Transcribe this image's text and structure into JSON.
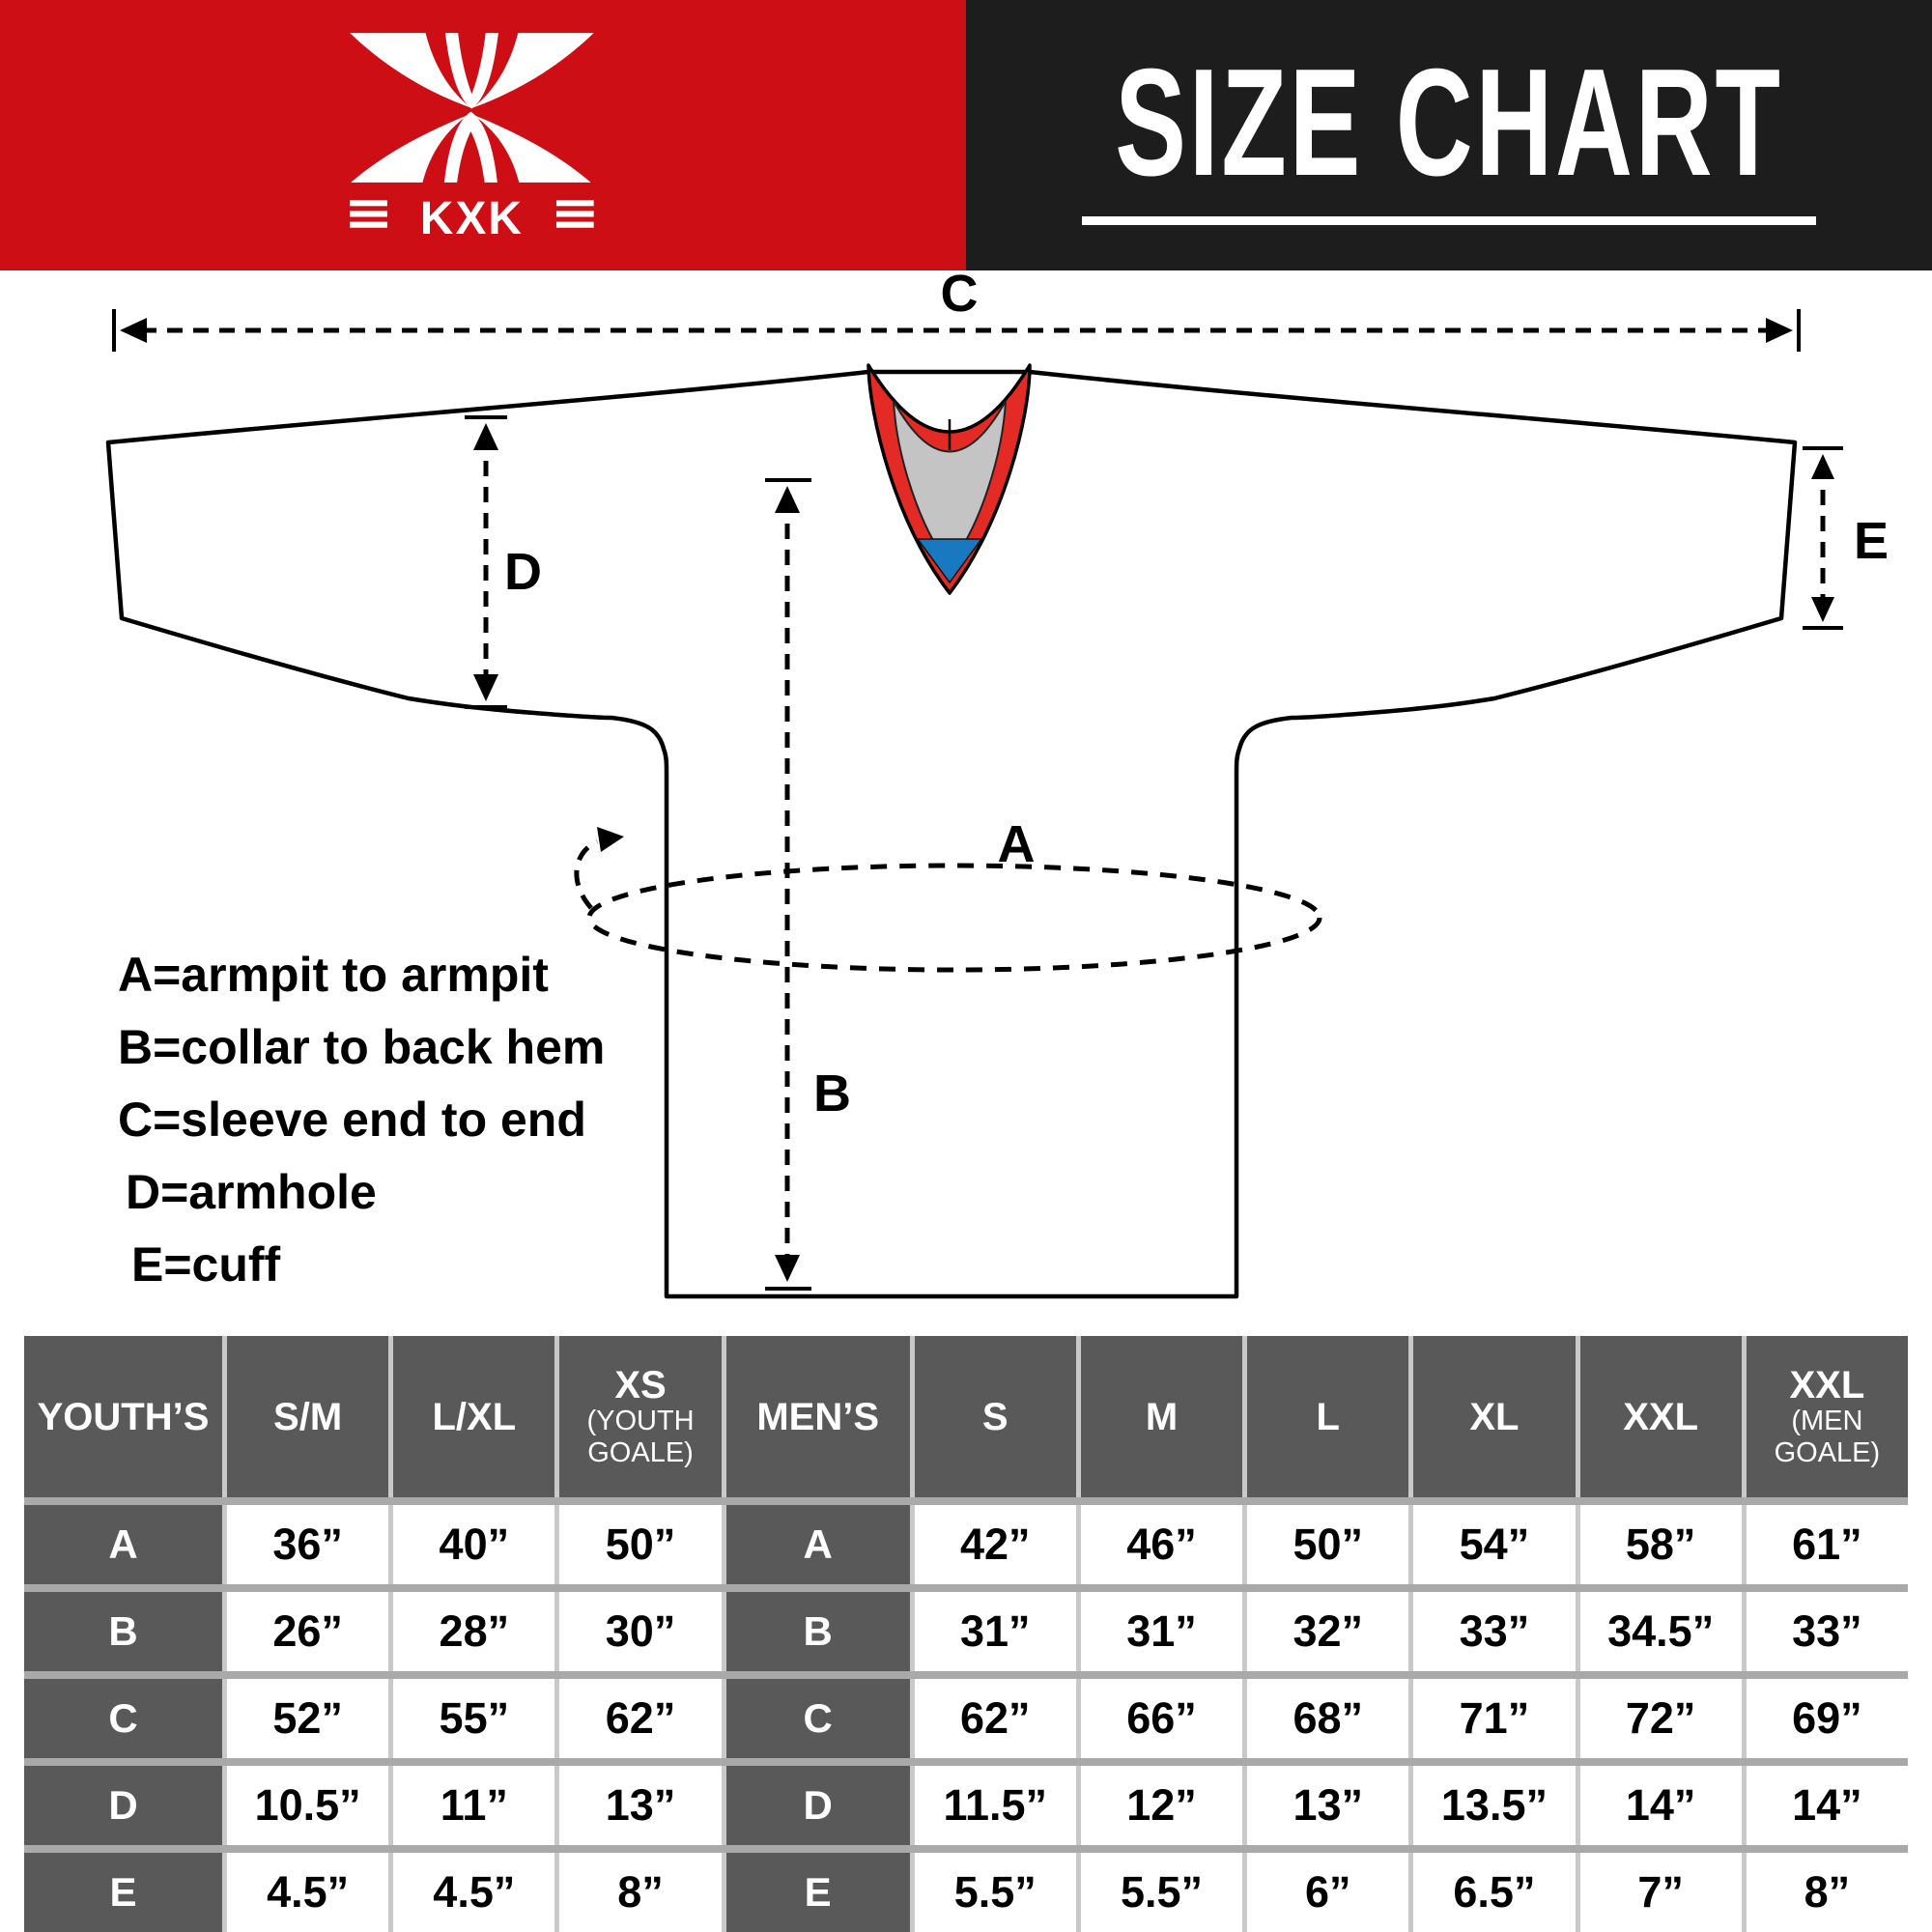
{
  "header": {
    "brand": "KXK",
    "title": "SIZE CHART"
  },
  "colors": {
    "brand_red": "#ce0e15",
    "header_black": "#1d1d1d",
    "collar_red": "#e32a25",
    "collar_gray": "#c4c4c4",
    "collar_blue": "#1879c0",
    "table_header_gray": "#595959",
    "table_grid_gray": "#a9a9a9"
  },
  "diagram": {
    "labels": {
      "a": "A",
      "b": "B",
      "c": "C",
      "d": "D",
      "e": "E"
    },
    "legend": [
      "A=armpit to armpit",
      "B=collar to back hem",
      "C=sleeve end to end",
      "D=armhole",
      "E=cuff"
    ]
  },
  "table": {
    "youth_title": "YOUTH’S",
    "youth_columns": [
      {
        "label": "S/M",
        "sub": []
      },
      {
        "label": "L/XL",
        "sub": []
      },
      {
        "label": "XS",
        "sub": [
          "(YOUTH",
          "GOALE)"
        ]
      }
    ],
    "mens_title": "MEN’S",
    "mens_columns": [
      {
        "label": "S",
        "sub": []
      },
      {
        "label": "M",
        "sub": []
      },
      {
        "label": "L",
        "sub": []
      },
      {
        "label": "XL",
        "sub": []
      },
      {
        "label": "XXL",
        "sub": []
      },
      {
        "label": "XXL",
        "sub": [
          "(MEN",
          "GOALE)"
        ]
      }
    ],
    "rows": [
      {
        "label": "A",
        "youth": [
          "36”",
          "40”",
          "50”"
        ],
        "mens": [
          "42”",
          "46”",
          "50”",
          "54”",
          "58”",
          "61”"
        ]
      },
      {
        "label": "B",
        "youth": [
          "26”",
          "28”",
          "30”"
        ],
        "mens": [
          "31”",
          "31”",
          "32”",
          "33”",
          "34.5”",
          "33”"
        ]
      },
      {
        "label": "C",
        "youth": [
          "52”",
          "55”",
          "62”"
        ],
        "mens": [
          "62”",
          "66”",
          "68”",
          "71”",
          "72”",
          "69”"
        ]
      },
      {
        "label": "D",
        "youth": [
          "10.5”",
          "11”",
          "13”"
        ],
        "mens": [
          "11.5”",
          "12”",
          "13”",
          "13.5”",
          "14”",
          "14”"
        ]
      },
      {
        "label": "E",
        "youth": [
          "4.5”",
          "4.5”",
          "8”"
        ],
        "mens": [
          "5.5”",
          "5.5”",
          "6”",
          "6.5”",
          "7”",
          "8”"
        ]
      }
    ]
  }
}
